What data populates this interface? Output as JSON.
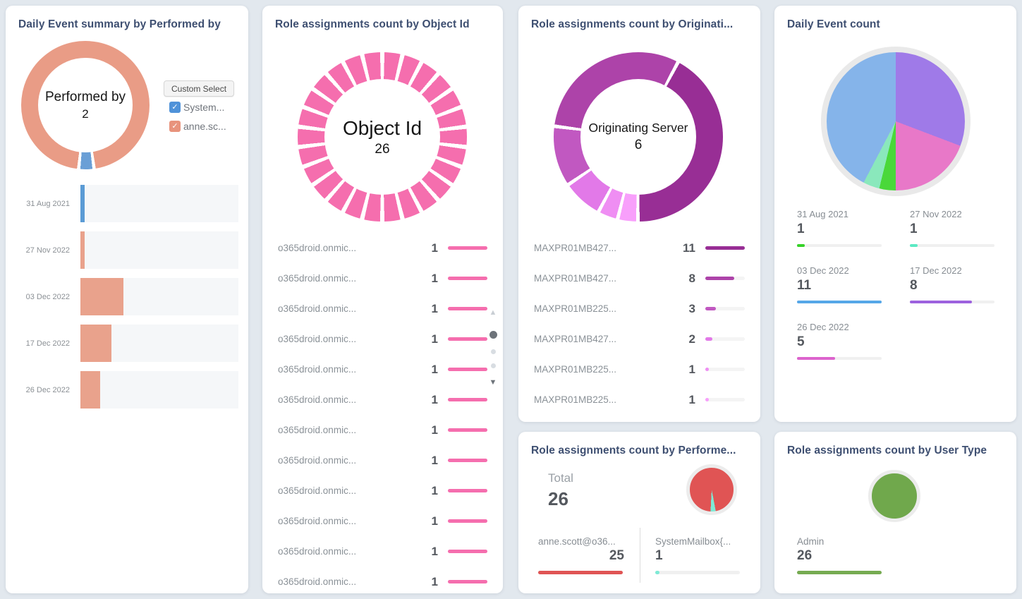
{
  "theme": {
    "page_background": "#e2e8ee",
    "card_background": "#ffffff",
    "title_color": "#3e4f71",
    "label_gray": "#878d93",
    "value_dark": "#54585e"
  },
  "cards": {
    "daily_summary": {
      "title": "Daily Event summary by Performed by",
      "custom_select_label": "Custom Select",
      "donut_center_label": "Performed by",
      "donut_center_value": "2"
    },
    "object_id": {
      "title": "Role assignments count by Object Id",
      "center_label": "Object Id",
      "center_value": "26"
    },
    "originating_server": {
      "title": "Role assignments count by Originati...",
      "center_label": "Originating Server",
      "center_value": "6"
    },
    "daily_event_count": {
      "title": "Daily Event count"
    },
    "performed_by": {
      "title": "Role assignments count by Performe...",
      "total_label": "Total",
      "total_value": "26"
    },
    "user_type": {
      "title": "Role assignments count by User Type"
    }
  },
  "chart_data": [
    {
      "card": "daily_summary",
      "type": "pie",
      "subtype": "donut",
      "title": "Daily Event summary by Performed by",
      "center_label": "Performed by",
      "center_value": 2,
      "slices": [
        {
          "label": "anne.sc...",
          "value": 25,
          "color": "#e99c86"
        },
        {
          "label": "System...",
          "value": 1,
          "color": "#6a9fd6"
        }
      ],
      "start_deg": 186,
      "gap_deg": 3,
      "legend_checkboxes": [
        {
          "label": "System...",
          "color": "#4f92d9",
          "checked": true
        },
        {
          "label": "anne.sc...",
          "color": "#e8937c",
          "checked": true
        }
      ]
    },
    {
      "card": "daily_summary",
      "type": "bar",
      "title": "Daily Event summary by Performed by",
      "categories": [
        "31 Aug 2021",
        "27 Nov 2022",
        "03 Dec 2022",
        "17 Dec 2022",
        "26 Dec 2022"
      ],
      "values": [
        1,
        1,
        11,
        8,
        5
      ],
      "colors": [
        "#5b9bd5",
        "#e9a28c",
        "#e9a28c",
        "#e9a28c",
        "#e9a28c"
      ],
      "xmax": 39,
      "track_color": "#f5f7f9",
      "legend_position": "none",
      "grid": false
    },
    {
      "card": "object_id",
      "type": "pie",
      "subtype": "donut",
      "title": "Role assignments count by Object Id",
      "center_label": "Object Id",
      "center_value": 26,
      "segment_count": 26,
      "segment_value": 1,
      "segment_color": "#f56eae",
      "start_deg": 0,
      "gap_deg": 3,
      "list": [
        {
          "label": "o365droid.onmic...",
          "value": 1
        },
        {
          "label": "o365droid.onmic...",
          "value": 1
        },
        {
          "label": "o365droid.onmic...",
          "value": 1
        },
        {
          "label": "o365droid.onmic...",
          "value": 1
        },
        {
          "label": "o365droid.onmic...",
          "value": 1
        },
        {
          "label": "o365droid.onmic...",
          "value": 1
        },
        {
          "label": "o365droid.onmic...",
          "value": 1
        },
        {
          "label": "o365droid.onmic...",
          "value": 1
        },
        {
          "label": "o365droid.onmic...",
          "value": 1
        },
        {
          "label": "o365droid.onmic...",
          "value": 1
        },
        {
          "label": "o365droid.onmic...",
          "value": 1
        },
        {
          "label": "o365droid.onmic...",
          "value": 1
        }
      ],
      "list_bar_color": "#f56eae",
      "scroller": {
        "up_arrow": "light",
        "dots": [
          "dark",
          "light",
          "light"
        ],
        "down_arrow": "dark"
      }
    },
    {
      "card": "originating_server",
      "type": "pie",
      "subtype": "donut",
      "title": "Role assignments count by Originating Server",
      "center_label": "Originating Server",
      "center_value": 6,
      "start_deg": 28,
      "gap_deg": 2.5,
      "slices": [
        {
          "label": "MAXPR01MB427...",
          "value": 11,
          "color": "#982e95"
        },
        {
          "label": "MAXPR01MB225...",
          "value": 1,
          "color": "#f89ffb"
        },
        {
          "label": "MAXPR01MB225...",
          "value": 1,
          "color": "#ef8ef3"
        },
        {
          "label": "MAXPR01MB427...",
          "value": 2,
          "color": "#e279e8"
        },
        {
          "label": "MAXPR01MB225...",
          "value": 3,
          "color": "#c158c1"
        },
        {
          "label": "MAXPR01MB427...",
          "value": 8,
          "color": "#ad43a9"
        }
      ],
      "list": [
        {
          "label": "MAXPR01MB427...",
          "value": 11,
          "color": "#982e95"
        },
        {
          "label": "MAXPR01MB427...",
          "value": 8,
          "color": "#ad43a9"
        },
        {
          "label": "MAXPR01MB225...",
          "value": 3,
          "color": "#c158c1"
        },
        {
          "label": "MAXPR01MB427...",
          "value": 2,
          "color": "#e279e8"
        },
        {
          "label": "MAXPR01MB225...",
          "value": 1,
          "color": "#ef8ef3"
        },
        {
          "label": "MAXPR01MB225...",
          "value": 1,
          "color": "#f89ffb"
        }
      ],
      "list_max": 11
    },
    {
      "card": "daily_event_count",
      "type": "pie",
      "title": "Daily Event count",
      "start_deg": 0,
      "gap_deg": 0,
      "slices": [
        {
          "label": "17 Dec 2022",
          "value": 8,
          "color": "#9f7ae8"
        },
        {
          "label": "26 Dec 2022",
          "value": 5,
          "color": "#e878c8"
        },
        {
          "label": "31 Aug 2021",
          "value": 1,
          "color": "#4ad83a"
        },
        {
          "label": "27 Nov 2022",
          "value": 1,
          "color": "#8ae8bc"
        },
        {
          "label": "03 Dec 2022",
          "value": 11,
          "color": "#85b4ea"
        }
      ],
      "legend": [
        {
          "label": "31 Aug 2021",
          "value": 1,
          "color": "#36d228"
        },
        {
          "label": "27 Nov 2022",
          "value": 1,
          "color": "#5ce9c3"
        },
        {
          "label": "03 Dec 2022",
          "value": 11,
          "color": "#56a7e8"
        },
        {
          "label": "17 Dec 2022",
          "value": 8,
          "color": "#9d62de"
        },
        {
          "label": "26 Dec 2022",
          "value": 5,
          "color": "#dc63cd"
        }
      ],
      "legend_max": 11,
      "legend_position": "bottom-grid"
    },
    {
      "card": "performed_by",
      "type": "pie",
      "title": "Role assignments count by Performed by",
      "total_label": "Total",
      "total_value": 26,
      "start_deg": 183,
      "gap_deg": 0,
      "slices": [
        {
          "label": "anne.scott@o36...",
          "value": 25,
          "color": "#e05454"
        },
        {
          "label": "SystemMailbox{...",
          "value": 1,
          "color": "#7eead6"
        }
      ],
      "stats": [
        {
          "label": "anne.scott@o36...",
          "value": 25,
          "color": "#e05454",
          "value_align": "right"
        },
        {
          "label": "SystemMailbox{...",
          "value": 1,
          "color": "#7eead6",
          "value_align": "left"
        }
      ],
      "stats_max": 25
    },
    {
      "card": "user_type",
      "type": "pie",
      "title": "Role assignments count by User Type",
      "start_deg": 0,
      "gap_deg": 0,
      "slices": [
        {
          "label": "Admin",
          "value": 26,
          "color": "#70a84c"
        }
      ],
      "stats": [
        {
          "label": "Admin",
          "value": 26,
          "color": "#76ab51",
          "value_align": "left"
        }
      ],
      "stats_max": 26
    }
  ]
}
